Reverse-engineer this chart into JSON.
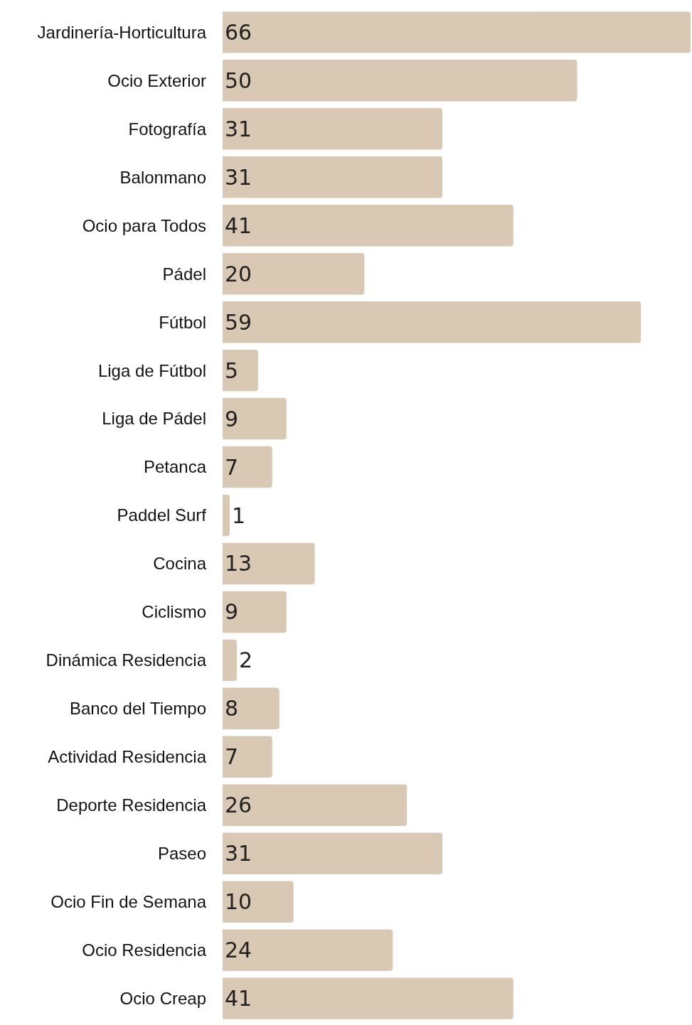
{
  "chart_data": {
    "type": "bar",
    "orientation": "horizontal",
    "data_labels": true,
    "color": "#d8c8b4",
    "categories": [
      "Jardinería-Horticultura",
      "Ocio Exterior",
      "Fotografía",
      "Balonmano",
      "Ocio para Todos",
      "Pádel",
      "Fútbol",
      "Liga de Fútbol",
      "Liga de Pádel",
      "Petanca",
      "Paddel Surf",
      "Cocina",
      "Ciclismo",
      "Dinámica Residencia",
      "Banco del Tiempo",
      "Actividad Residencia",
      "Deporte Residencia",
      "Paseo",
      "Ocio Fin de Semana",
      "Ocio Residencia",
      "Ocio Creap"
    ],
    "values": [
      66,
      50,
      31,
      31,
      41,
      20,
      59,
      5,
      9,
      7,
      1,
      13,
      9,
      2,
      8,
      7,
      26,
      31,
      10,
      24,
      41
    ]
  }
}
